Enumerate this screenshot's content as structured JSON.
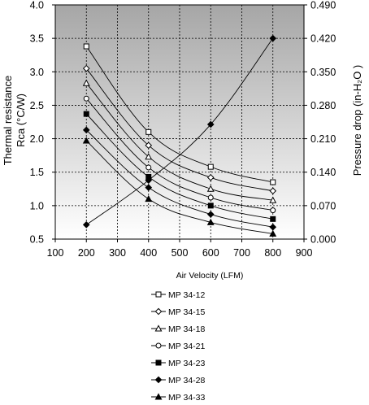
{
  "chart_data": {
    "type": "line",
    "xlabel": "Air Velocity (LFM)",
    "ylabel_left": [
      "Thermal resistance",
      "Rca (°C/W)"
    ],
    "ylabel_right": "Pressure drop  (in-H₂O )",
    "xlim": [
      100,
      900
    ],
    "ylim_left": [
      0.5,
      4.0
    ],
    "ylim_right": [
      0.0,
      0.49
    ],
    "x_ticks": [
      "100",
      "200",
      "300",
      "400",
      "500",
      "600",
      "700",
      "800",
      "900"
    ],
    "y_left_ticks": [
      "0.5",
      "1.0",
      "1.5",
      "2.0",
      "2.5",
      "3.0",
      "3.5",
      "4.0"
    ],
    "y_right_ticks": [
      "0.000",
      "0.070",
      "0.140",
      "0.210",
      "0.280",
      "0.350",
      "0.420",
      "0.490"
    ],
    "grid": true,
    "legend_position": "bottom",
    "background_gradient": [
      "#a6a6a6",
      "#ffffff"
    ],
    "series": [
      {
        "name": "MP 34-12",
        "marker": "square-open",
        "axis": "left",
        "x": [
          200,
          400,
          600,
          800
        ],
        "y": [
          3.38,
          2.1,
          1.58,
          1.35
        ]
      },
      {
        "name": "MP 34-15",
        "marker": "diamond-open",
        "axis": "left",
        "x": [
          200,
          400,
          600,
          800
        ],
        "y": [
          3.05,
          1.9,
          1.42,
          1.22
        ]
      },
      {
        "name": "MP 34-18",
        "marker": "triangle-open",
        "axis": "left",
        "x": [
          200,
          400,
          600,
          800
        ],
        "y": [
          2.83,
          1.73,
          1.25,
          1.08
        ]
      },
      {
        "name": "MP 34-21",
        "marker": "circle-open",
        "axis": "left",
        "x": [
          200,
          400,
          600,
          800
        ],
        "y": [
          2.6,
          1.57,
          1.12,
          0.93
        ]
      },
      {
        "name": "MP 34-23",
        "marker": "square-filled",
        "axis": "left",
        "x": [
          200,
          400,
          600,
          800
        ],
        "y": [
          2.37,
          1.43,
          1.0,
          0.8
        ]
      },
      {
        "name": "MP 34-28",
        "marker": "diamond-filled",
        "axis": "left",
        "x": [
          200,
          400,
          600,
          800
        ],
        "y": [
          2.13,
          1.27,
          0.87,
          0.68
        ]
      },
      {
        "name": "MP 34-33",
        "marker": "triangle-filled",
        "axis": "left",
        "x": [
          200,
          400,
          600,
          800
        ],
        "y": [
          1.97,
          1.1,
          0.75,
          0.58
        ]
      },
      {
        "marker": "diamond-filled",
        "axis": "right",
        "x": [
          200,
          400,
          600,
          800
        ],
        "y": [
          0.03,
          0.123,
          0.24,
          0.42
        ]
      }
    ]
  }
}
